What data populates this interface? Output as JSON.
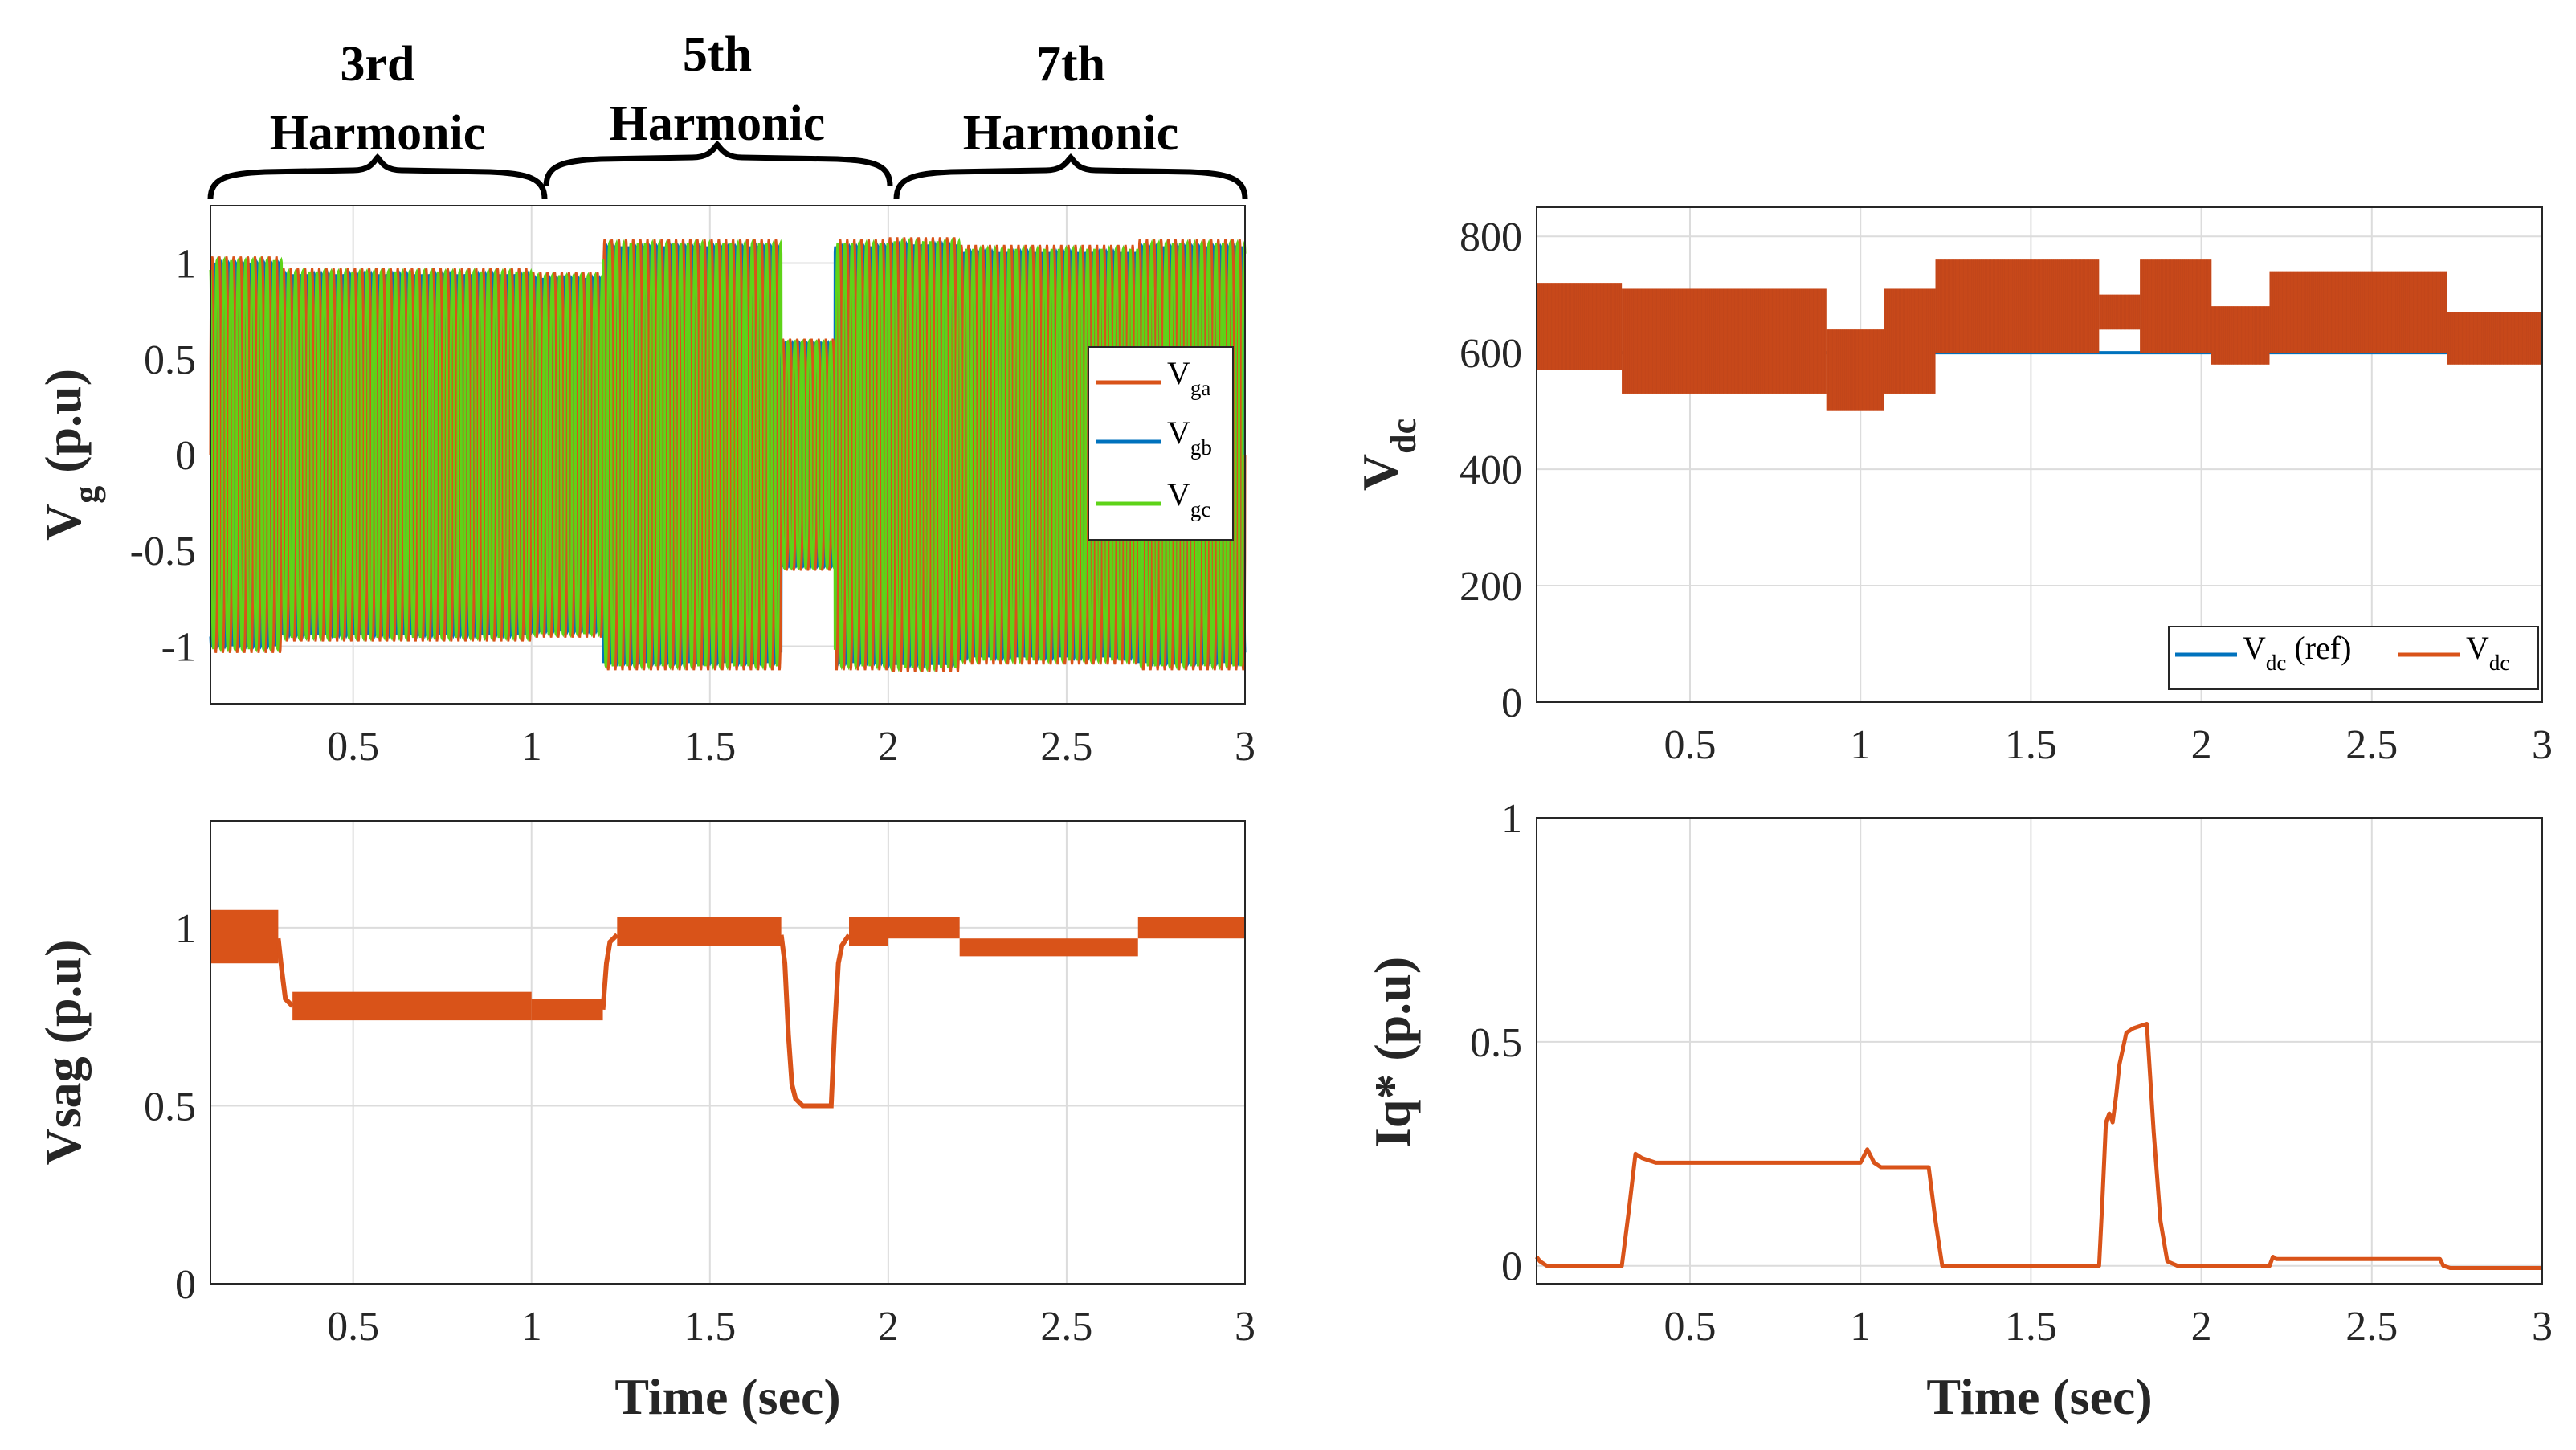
{
  "chart_data": [
    {
      "id": "vg",
      "type": "line",
      "ylabel_main": "V",
      "ylabel_sub": "g",
      "ylabel_unit": " (p.u)",
      "xlim": [
        0.1,
        3.0
      ],
      "ylim": [
        -1.3,
        1.3
      ],
      "xticks": [
        0.5,
        1,
        1.5,
        2,
        2.5,
        3
      ],
      "xtick_labels": [
        "0.5",
        "1",
        "1.5",
        "2",
        "2.5",
        "3"
      ],
      "yticks": [
        -1,
        -0.5,
        0,
        0.5,
        1
      ],
      "ytick_labels": [
        "-1",
        "-0.5",
        "0",
        "0.5",
        "1"
      ],
      "grid": true,
      "legend_position": "right",
      "series": [
        {
          "name": "V",
          "sub": "ga",
          "color": "#d95319"
        },
        {
          "name": "V",
          "sub": "gb",
          "color": "#0072bd"
        },
        {
          "name": "V",
          "sub": "gc",
          "color": "#5ed318"
        }
      ],
      "envelope_segments": [
        {
          "t0": 0.1,
          "t1": 0.3,
          "max": 1.03,
          "min": 0.68
        },
        {
          "t0": 0.3,
          "t1": 1.0,
          "max": 0.97,
          "min": 0.52
        },
        {
          "t0": 1.0,
          "t1": 1.2,
          "max": 0.95,
          "min": 0.65
        },
        {
          "t0": 1.2,
          "t1": 1.7,
          "max": 1.12,
          "min": 0.52
        },
        {
          "t0": 1.7,
          "t1": 1.85,
          "max": 0.6,
          "min": 0.6
        },
        {
          "t0": 1.85,
          "t1": 2.0,
          "max": 1.12,
          "min": 0.52
        },
        {
          "t0": 2.0,
          "t1": 2.2,
          "max": 1.13,
          "min": 0.65
        },
        {
          "t0": 2.2,
          "t1": 2.7,
          "max": 1.09,
          "min": 0.62
        },
        {
          "t0": 2.7,
          "t1": 3.0,
          "max": 1.12,
          "min": 0.62
        }
      ],
      "annotations": [
        {
          "line1": "3rd",
          "line2": "Harmonic",
          "t0": 0.1,
          "t1": 1.0
        },
        {
          "line1": "5th",
          "line2": "Harmonic",
          "t0": 1.0,
          "t1": 2.0
        },
        {
          "line1": "7th",
          "line2": "Harmonic",
          "t0": 2.0,
          "t1": 3.0
        }
      ]
    },
    {
      "id": "vdc",
      "type": "line",
      "ylabel_main": "V",
      "ylabel_sub": "dc",
      "ylabel_unit": "",
      "xlim": [
        0.05,
        3.0
      ],
      "ylim": [
        0,
        850
      ],
      "xticks": [
        0.5,
        1,
        1.5,
        2,
        2.5,
        3
      ],
      "xtick_labels": [
        "0.5",
        "1",
        "1.5",
        "2",
        "2.5",
        "3"
      ],
      "yticks": [
        0,
        200,
        400,
        600,
        800
      ],
      "ytick_labels": [
        "0",
        "200",
        "400",
        "600",
        "800"
      ],
      "grid": true,
      "legend_position": "bottom-right",
      "series": [
        {
          "name": "V",
          "sub": "dc",
          "suffix": " (ref)",
          "color": "#0072bd",
          "segments": [
            {
              "t0": 0.05,
              "t1": 3.0,
              "value": 600
            }
          ]
        },
        {
          "name": "V",
          "sub": "dc",
          "suffix": "",
          "color": "#d95319",
          "bands": [
            {
              "t0": 0.05,
              "t1": 0.3,
              "min": 570,
              "max": 720
            },
            {
              "t0": 0.3,
              "t1": 0.9,
              "min": 530,
              "max": 710
            },
            {
              "t0": 0.9,
              "t1": 1.07,
              "min": 500,
              "max": 640
            },
            {
              "t0": 1.07,
              "t1": 1.22,
              "min": 530,
              "max": 710
            },
            {
              "t0": 1.22,
              "t1": 1.7,
              "min": 600,
              "max": 760
            },
            {
              "t0": 1.7,
              "t1": 1.82,
              "min": 640,
              "max": 700
            },
            {
              "t0": 1.82,
              "t1": 1.85,
              "min": 600,
              "max": 760
            },
            {
              "t0": 1.85,
              "t1": 2.03,
              "min": 600,
              "max": 760
            },
            {
              "t0": 2.03,
              "t1": 2.2,
              "min": 580,
              "max": 680
            },
            {
              "t0": 2.2,
              "t1": 2.72,
              "min": 600,
              "max": 740
            },
            {
              "t0": 2.72,
              "t1": 3.0,
              "min": 580,
              "max": 670
            }
          ]
        }
      ]
    },
    {
      "id": "vsag",
      "type": "line",
      "ylabel_main": "Vsag",
      "ylabel_sub": "",
      "ylabel_unit": " (p.u)",
      "xlabel": "Time (sec)",
      "xlim": [
        0.1,
        3.0
      ],
      "ylim": [
        0,
        1.3
      ],
      "xticks": [
        0.5,
        1,
        1.5,
        2,
        2.5,
        3
      ],
      "xtick_labels": [
        "0.5",
        "1",
        "1.5",
        "2",
        "2.5",
        "3"
      ],
      "yticks": [
        0,
        0.5,
        1
      ],
      "ytick_labels": [
        "0",
        "0.5",
        "1"
      ],
      "grid": true,
      "series": [
        {
          "name": "Vsag",
          "color": "#d95319",
          "bands": [
            {
              "t0": 0.1,
              "t1": 0.29,
              "min": 0.9,
              "max": 1.05
            },
            {
              "t0": 0.33,
              "t1": 1.0,
              "min": 0.74,
              "max": 0.82
            },
            {
              "t0": 1.0,
              "t1": 1.2,
              "min": 0.74,
              "max": 0.8
            },
            {
              "t0": 1.24,
              "t1": 1.7,
              "min": 0.95,
              "max": 1.03
            },
            {
              "t0": 1.89,
              "t1": 2.0,
              "min": 0.95,
              "max": 1.03
            },
            {
              "t0": 2.0,
              "t1": 2.2,
              "min": 0.97,
              "max": 1.03
            },
            {
              "t0": 2.2,
              "t1": 2.7,
              "min": 0.92,
              "max": 0.97
            },
            {
              "t0": 2.7,
              "t1": 3.0,
              "min": 0.97,
              "max": 1.03
            }
          ],
          "transitions": [
            {
              "t": [
                0.29,
                0.3,
                0.31,
                0.33
              ],
              "v": [
                0.97,
                0.88,
                0.8,
                0.78
              ]
            },
            {
              "t": [
                1.2,
                1.21,
                1.22,
                1.24
              ],
              "v": [
                0.77,
                0.9,
                0.96,
                0.98
              ]
            },
            {
              "t": [
                1.7,
                1.71,
                1.72,
                1.73,
                1.74,
                1.76,
                1.8,
                1.84,
                1.85,
                1.86,
                1.87,
                1.89
              ],
              "v": [
                0.98,
                0.9,
                0.7,
                0.56,
                0.52,
                0.5,
                0.5,
                0.5,
                0.72,
                0.9,
                0.95,
                0.98
              ]
            }
          ]
        }
      ]
    },
    {
      "id": "iq",
      "type": "line",
      "ylabel_main": "Iq*",
      "ylabel_sub": "",
      "ylabel_unit": " (p.u)",
      "xlabel": "Time (sec)",
      "xlim": [
        0.05,
        3.0
      ],
      "ylim": [
        -0.04,
        1.0
      ],
      "xticks": [
        0.5,
        1,
        1.5,
        2,
        2.5,
        3
      ],
      "xtick_labels": [
        "0.5",
        "1",
        "1.5",
        "2",
        "2.5",
        "3"
      ],
      "yticks": [
        0,
        0.5,
        1
      ],
      "ytick_labels": [
        "0",
        "0.5",
        "1"
      ],
      "grid": true,
      "series": [
        {
          "name": "Iq*",
          "color": "#d95319",
          "x": [
            0.05,
            0.06,
            0.08,
            0.3,
            0.32,
            0.34,
            0.36,
            0.4,
            1.0,
            1.02,
            1.04,
            1.06,
            1.2,
            1.22,
            1.24,
            1.3,
            1.7,
            1.71,
            1.72,
            1.73,
            1.74,
            1.75,
            1.76,
            1.78,
            1.8,
            1.84,
            1.86,
            1.88,
            1.9,
            1.93,
            2.2,
            2.21,
            2.22,
            2.7,
            2.71,
            2.73,
            3.0
          ],
          "y": [
            0.02,
            0.01,
            0.0,
            0.0,
            0.12,
            0.25,
            0.24,
            0.23,
            0.23,
            0.26,
            0.23,
            0.22,
            0.22,
            0.1,
            0.0,
            0.0,
            0.0,
            0.15,
            0.32,
            0.34,
            0.32,
            0.38,
            0.45,
            0.52,
            0.53,
            0.54,
            0.3,
            0.1,
            0.01,
            0.0,
            0.0,
            0.02,
            0.015,
            0.015,
            0.0,
            -0.005,
            -0.005
          ]
        }
      ]
    }
  ]
}
